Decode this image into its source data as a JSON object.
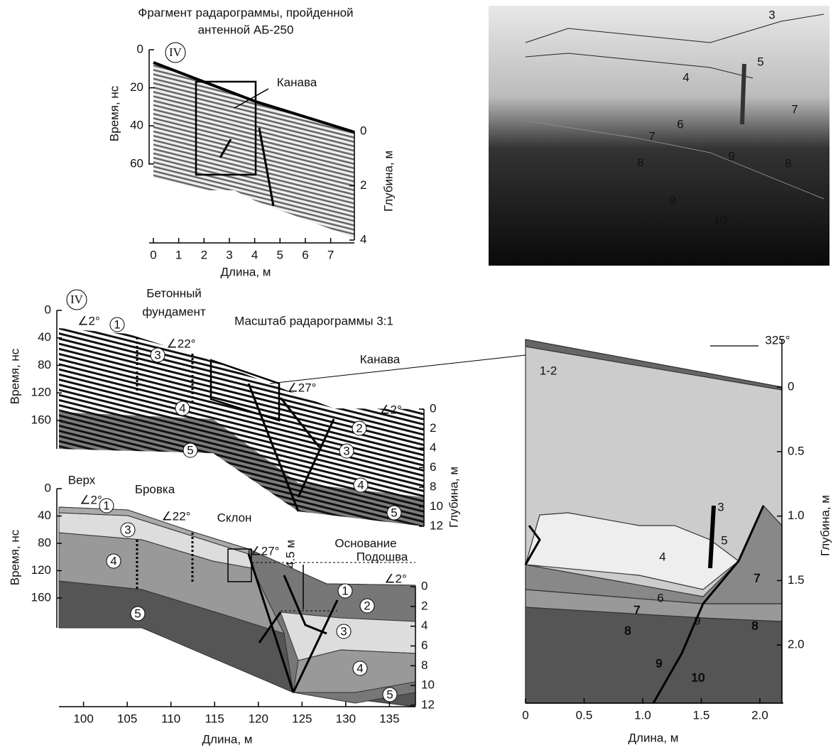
{
  "fragment": {
    "title": [
      "Фрагмент радарограммы, пройденной",
      "антенной АБ-250"
    ],
    "marker": "IV",
    "annotation": "Канава",
    "x_label": "Длина, м",
    "xlim": [
      0,
      7.6
    ],
    "xticks": [
      0,
      1,
      2,
      3,
      4,
      5,
      6,
      7
    ],
    "y_label": "Время, нс",
    "ylim": [
      0,
      100
    ],
    "yticks": [
      0,
      20,
      40,
      60
    ],
    "y2_label": "Глубина, м",
    "y2lim": [
      0,
      4
    ],
    "y2ticks": [
      0,
      2,
      4
    ]
  },
  "photo": {
    "labels": [
      "3",
      "4",
      "5",
      "7",
      "6",
      "7",
      "9",
      "8",
      "8",
      "9",
      "10"
    ]
  },
  "radargram": {
    "marker": "IV",
    "foundation": [
      "Бетонный",
      "фундамент"
    ],
    "scale_note": "Масштаб радарограммы 3:1",
    "ditch": "Канава",
    "angles": [
      "∠2°",
      "∠22°",
      "∠27°",
      "∠2°"
    ],
    "units": [
      "1",
      "3",
      "4",
      "5",
      "2",
      "3",
      "4",
      "5"
    ],
    "y_label": "Время, нс",
    "ylim": [
      0,
      160
    ],
    "yticks": [
      0,
      40,
      80,
      120,
      160
    ],
    "y2_label": "Глубина, м",
    "y2lim": [
      0,
      12
    ],
    "y2ticks": [
      0,
      2,
      4,
      6,
      8,
      10,
      12
    ]
  },
  "section": {
    "places": [
      "Верх",
      "Бровка",
      "Склон",
      "Основание",
      "Подошва"
    ],
    "thickness": "4.5 м",
    "angles": [
      "∠2°",
      "∠22°",
      "∠27°",
      "∠2°"
    ],
    "units": [
      "1",
      "3",
      "4",
      "5",
      "1",
      "2",
      "3",
      "4",
      "5"
    ],
    "y_label": "Время, нс",
    "ylim": [
      0,
      160
    ],
    "yticks": [
      0,
      40,
      80,
      120,
      160
    ],
    "y2_label": "Глубина, м",
    "y2lim": [
      0,
      12
    ],
    "y2ticks": [
      0,
      2,
      4,
      6,
      8,
      10,
      12
    ],
    "x_label": "Длина, м",
    "xlim": [
      98,
      137
    ],
    "xticks": [
      100,
      105,
      110,
      115,
      120,
      125,
      130,
      135
    ]
  },
  "trench_wall": {
    "azimuth": "325°",
    "surface_layer": "1-2",
    "labels": [
      "3",
      "5",
      "4",
      "7",
      "6",
      "7",
      "9",
      "8",
      "8",
      "9",
      "10"
    ],
    "x_label": "Длина, м",
    "xlim": [
      0,
      2.2
    ],
    "xticks": [
      0,
      0.5,
      {
        "value": 1,
        "label": "1.0"
      },
      1.5,
      {
        "value": 2,
        "label": "2.0"
      }
    ],
    "y_label": "Глубина, м",
    "ylim": [
      -0.37,
      2.44
    ],
    "yticks": [
      0,
      0.5,
      {
        "value": 1,
        "label": "1.0"
      },
      1.5,
      {
        "value": 2,
        "label": "2.0"
      }
    ]
  }
}
